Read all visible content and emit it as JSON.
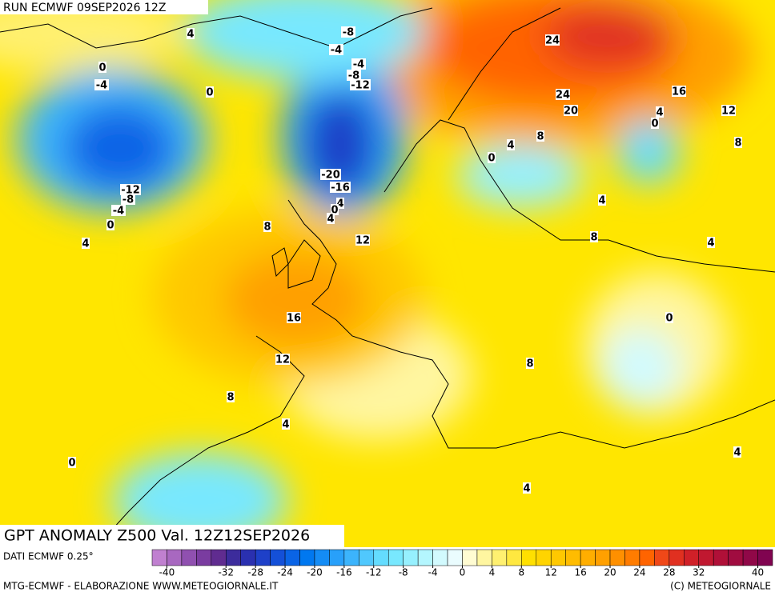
{
  "header": {
    "run": "RUN ECMWF 09SEP2026 12Z"
  },
  "title": "GPT ANOMALY Z500 Val. 12Z12SEP2026",
  "contour_labels": [
    4,
    -8,
    -4,
    0,
    -4,
    24,
    -4,
    -8,
    -12,
    0,
    24,
    20,
    16,
    12,
    4,
    0,
    8,
    4,
    0,
    8,
    -20,
    -16,
    -12,
    -8,
    -4,
    4,
    4,
    0,
    4,
    0,
    8,
    8,
    12,
    4,
    4,
    0,
    16,
    12,
    8,
    8,
    4,
    4,
    0,
    4
  ],
  "colorbar": {
    "source": "DATI ECMWF 0.25°",
    "ticks": [
      -40,
      -32,
      -28,
      -24,
      -20,
      -16,
      -12,
      -8,
      -4,
      0,
      4,
      8,
      12,
      16,
      20,
      24,
      28,
      32,
      40
    ],
    "colors": [
      "#c080d0",
      "#a868c0",
      "#9050b0",
      "#7a3ca0",
      "#602c90",
      "#3c2c9c",
      "#2a30b0",
      "#1e40c8",
      "#1450d8",
      "#0a64e6",
      "#0078f0",
      "#148cf5",
      "#28a0fa",
      "#3cb4fc",
      "#50c8fd",
      "#64dcfe",
      "#78e8fe",
      "#96f0fe",
      "#b4f6fe",
      "#d2fafe",
      "#eafcfe",
      "#fffcd2",
      "#fff6a0",
      "#fff070",
      "#ffe840",
      "#ffe000",
      "#ffd400",
      "#ffc800",
      "#ffbc00",
      "#ffae00",
      "#ffa000",
      "#ff9000",
      "#ff7c00",
      "#ff6400",
      "#f04818",
      "#e03020",
      "#d02028",
      "#c01830",
      "#b01038",
      "#a00c40",
      "#900848",
      "#800450"
    ]
  },
  "footer": {
    "left": "MTG-ECMWF - ELABORAZIONE WWW.METEOGIORNALE.IT",
    "right": "(C) METEOGIORNALE"
  }
}
